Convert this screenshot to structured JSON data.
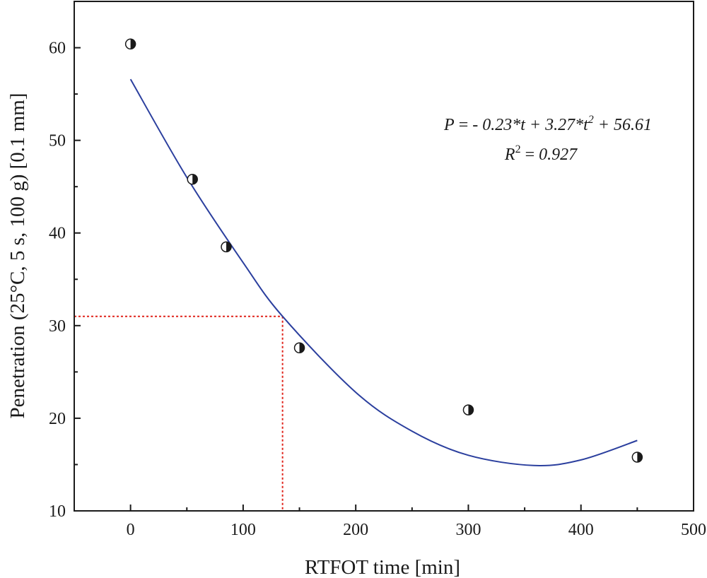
{
  "chart_data": {
    "type": "scatter",
    "xlabel": "RTFOT time [min]",
    "ylabel": "Penetration (25°C, 5 s, 100 g) [0.1 mm]",
    "xlim": [
      -50,
      500
    ],
    "ylim": [
      10,
      65
    ],
    "xticks": [
      0,
      100,
      200,
      300,
      400,
      500
    ],
    "yticks": [
      10,
      20,
      30,
      40,
      50,
      60
    ],
    "grid": false,
    "legend": "none",
    "marker": "half-filled-circle",
    "points": [
      {
        "x": 0,
        "y": 60.4
      },
      {
        "x": 55,
        "y": 45.8
      },
      {
        "x": 85,
        "y": 38.5
      },
      {
        "x": 150,
        "y": 27.6
      },
      {
        "x": 300,
        "y": 20.9
      },
      {
        "x": 450,
        "y": 15.8
      }
    ],
    "fit_curve": {
      "color": "#2b3f9e",
      "points": [
        [
          0,
          56.6
        ],
        [
          50,
          46.0
        ],
        [
          100,
          36.8
        ],
        [
          135,
          31.0
        ],
        [
          200,
          22.8
        ],
        [
          250,
          18.6
        ],
        [
          300,
          16.0
        ],
        [
          358,
          14.9
        ],
        [
          400,
          15.5
        ],
        [
          450,
          17.6
        ]
      ]
    },
    "reference_lines": {
      "color": "#e0241b",
      "x": 135,
      "y": 31
    },
    "equation": {
      "line1_a": "P",
      "line1_b": " = - ",
      "line1_c": "0.23*t + 3.27*t",
      "line1_sup": "2",
      "line1_d": " + 56.61",
      "line2_a": "R",
      "line2_sup": "2",
      "line2_b": " = ",
      "line2_c": "0.927"
    }
  }
}
